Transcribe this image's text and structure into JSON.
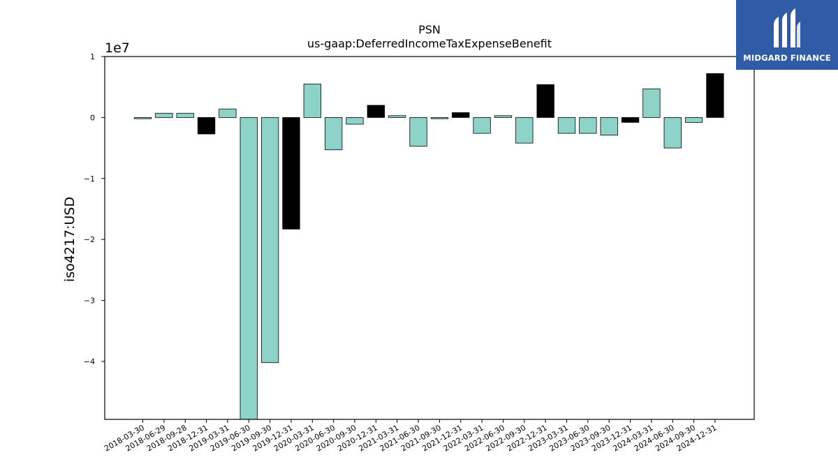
{
  "brand": {
    "name": "MIDGARD FINANCE"
  },
  "chart_data": {
    "type": "bar",
    "title": "PSN",
    "subtitle": "us-gaap:DeferredIncomeTaxExpenseBenefit",
    "ylabel": "iso4217:USD",
    "xlabel": "",
    "y_offset_label": "1e7",
    "ylim": [
      -49500000,
      10000000
    ],
    "yticks": [
      {
        "value": 10000000,
        "label": "1"
      },
      {
        "value": 0,
        "label": "0"
      },
      {
        "value": -10000000,
        "label": "−1"
      },
      {
        "value": -20000000,
        "label": "−2"
      },
      {
        "value": -30000000,
        "label": "−3"
      },
      {
        "value": -40000000,
        "label": "−4"
      }
    ],
    "colors": {
      "quarter": "#8dd3c7",
      "year_end": "#000000"
    },
    "categories": [
      "2018-03-30",
      "2018-06-29",
      "2018-09-28",
      "2018-12-31",
      "2019-03-31",
      "2019-06-30",
      "2019-09-30",
      "2019-12-31",
      "2020-03-31",
      "2020-06-30",
      "2020-09-30",
      "2020-12-31",
      "2021-03-31",
      "2021-06-30",
      "2021-09-30",
      "2021-12-31",
      "2022-03-31",
      "2022-06-30",
      "2022-09-30",
      "2022-12-31",
      "2023-03-31",
      "2023-06-30",
      "2023-09-30",
      "2023-12-31",
      "2024-03-31",
      "2024-06-30",
      "2024-09-30",
      "2024-12-31"
    ],
    "values": [
      -200000,
      700000,
      700000,
      -2700000,
      1400000,
      -49500000,
      -40200000,
      -18300000,
      5500000,
      -5300000,
      -1100000,
      2000000,
      300000,
      -4700000,
      -200000,
      800000,
      -2600000,
      300000,
      -4200000,
      5400000,
      -2600000,
      -2600000,
      -2900000,
      -800000,
      4700000,
      -5000000,
      -800000,
      7200000
    ],
    "year_end": [
      false,
      false,
      false,
      true,
      false,
      false,
      false,
      true,
      false,
      false,
      false,
      true,
      false,
      false,
      false,
      true,
      false,
      false,
      false,
      true,
      false,
      false,
      false,
      true,
      false,
      false,
      false,
      true
    ]
  }
}
